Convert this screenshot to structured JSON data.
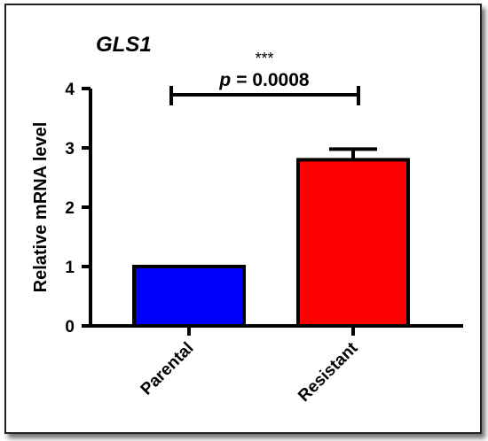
{
  "chart_data": {
    "type": "bar",
    "title": "GLS1",
    "ylabel": "Relative mRNA level",
    "xlabel": "",
    "ylim": [
      0,
      4
    ],
    "yticks": [
      0,
      1,
      2,
      3,
      4
    ],
    "categories": [
      "Parental",
      "Resistant"
    ],
    "values": [
      1.0,
      2.8
    ],
    "error_upper": [
      0,
      0.18
    ],
    "bar_colors": [
      "#0000ff",
      "#ff0000"
    ],
    "annotation": {
      "stars": "***",
      "p_label": "p",
      "p_value": "= 0.0008"
    }
  }
}
